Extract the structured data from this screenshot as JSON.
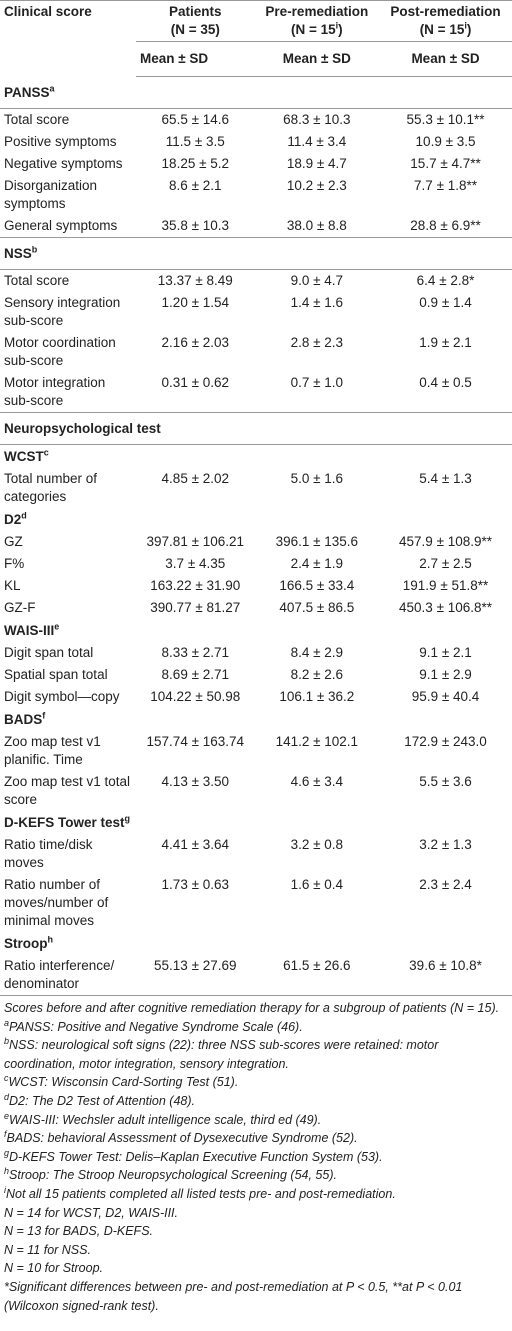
{
  "header": {
    "columns": [
      {
        "title": "Clinical score"
      },
      {
        "title": "Patients",
        "n": {
          "text": "(N = 35)"
        }
      },
      {
        "title": "Pre-remediation",
        "n": {
          "text": "(N = 15",
          "sup": "i",
          "close": ")"
        }
      },
      {
        "title": "Post-remediation",
        "n": {
          "text": "(N = 15",
          "sup": "i",
          "close": ")"
        }
      }
    ],
    "stat": [
      "Mean ± SD",
      "Mean ± SD",
      "Mean ± SD"
    ]
  },
  "sections": [
    {
      "title": "PANSS",
      "sup": "a",
      "rows": [
        {
          "label": "Total score",
          "values": [
            "65.5 ± 14.6",
            "68.3 ± 10.3",
            "55.3 ± 10.1**"
          ]
        },
        {
          "label": "Positive symptoms",
          "values": [
            "11.5 ± 3.5",
            "11.4 ± 3.4",
            "10.9 ± 3.5"
          ]
        },
        {
          "label": "Negative symptoms",
          "values": [
            "18.25 ± 5.2",
            "18.9 ± 4.7",
            "15.7 ± 4.7**"
          ]
        },
        {
          "label": "Disorganization symptoms",
          "values": [
            "8.6 ± 2.1",
            "10.2 ± 2.3",
            "7.7 ± 1.8**"
          ]
        },
        {
          "label": "General symptoms",
          "values": [
            "35.8 ± 10.3",
            "38.0 ± 8.8",
            "28.8 ± 6.9**"
          ]
        }
      ]
    },
    {
      "title": "NSS",
      "sup": "b",
      "rows": [
        {
          "label": "Total score",
          "values": [
            "13.37 ± 8.49",
            "9.0 ± 4.7",
            "6.4 ± 2.8*"
          ]
        },
        {
          "label": "Sensory integration sub-score",
          "values": [
            "1.20 ± 1.54",
            "1.4 ± 1.6",
            "0.9 ± 1.4"
          ]
        },
        {
          "label": "Motor coordination sub-score",
          "values": [
            "2.16 ± 2.03",
            "2.8 ± 2.3",
            "1.9 ± 2.1"
          ]
        },
        {
          "label": "Motor integration sub-score",
          "values": [
            "0.31 ± 0.62",
            "0.7 ± 1.0",
            "0.4 ± 0.5"
          ]
        }
      ]
    },
    {
      "title": "Neuropsychological test",
      "subsections": [
        {
          "title": "WCST",
          "sup": "c",
          "rows": [
            {
              "label": "Total number of categories",
              "values": [
                "4.85 ± 2.02",
                "5.0 ± 1.6",
                "5.4 ± 1.3"
              ]
            }
          ]
        },
        {
          "title": "D2",
          "sup": "d",
          "rows": [
            {
              "label": "GZ",
              "values": [
                "397.81 ± 106.21",
                "396.1 ± 135.6",
                "457.9 ± 108.9**"
              ]
            },
            {
              "label": "F%",
              "values": [
                "3.7 ± 4.35",
                "2.4 ± 1.9",
                "2.7 ± 2.5"
              ]
            },
            {
              "label": "KL",
              "values": [
                "163.22 ± 31.90",
                "166.5 ± 33.4",
                "191.9 ± 51.8**"
              ]
            },
            {
              "label": "GZ-F",
              "values": [
                "390.77 ± 81.27",
                "407.5 ± 86.5",
                "450.3 ± 106.8**"
              ]
            }
          ]
        },
        {
          "title": "WAIS-III",
          "sup": "e",
          "rows": [
            {
              "label": "Digit span total",
              "values": [
                "8.33 ± 2.71",
                "8.4 ± 2.9",
                "9.1 ± 2.1"
              ]
            },
            {
              "label": "Spatial span total",
              "values": [
                "8.69 ± 2.71",
                "8.2 ± 2.6",
                "9.1 ± 2.9"
              ]
            },
            {
              "label": "Digit symbol—copy",
              "values": [
                "104.22 ± 50.98",
                "106.1 ± 36.2",
                "95.9 ± 40.4"
              ]
            }
          ]
        },
        {
          "title": "BADS",
          "sup": "f",
          "rows": [
            {
              "label": "Zoo map test v1 planific. Time",
              "values": [
                "157.74 ± 163.74",
                "141.2 ± 102.1",
                "172.9 ± 243.0"
              ]
            },
            {
              "label": "Zoo map test v1 total score",
              "values": [
                "4.13 ± 3.50",
                "4.6 ± 3.4",
                "5.5 ± 3.6"
              ]
            }
          ]
        },
        {
          "title": "D-KEFS Tower test",
          "sup": "g",
          "rows": [
            {
              "label": "Ratio time/disk moves",
              "values": [
                "4.41 ± 3.64",
                "3.2 ± 0.8",
                "3.2 ± 1.3"
              ]
            },
            {
              "label": "Ratio number of moves/number of minimal moves",
              "values": [
                "1.73 ± 0.63",
                "1.6 ± 0.4",
                "2.3 ± 2.4"
              ]
            }
          ]
        },
        {
          "title": "Stroop",
          "sup": "h",
          "rows": [
            {
              "label": "Ratio interference/ denominator",
              "values": [
                "55.13 ± 27.69",
                "61.5 ± 26.6",
                "39.6 ± 10.8*"
              ]
            }
          ]
        }
      ]
    }
  ],
  "footnotes": [
    {
      "text": "Scores before and after cognitive remediation therapy for a subgroup of patients (N = 15)."
    },
    {
      "sup": "a",
      "text": "PANSS: Positive and Negative Syndrome Scale (46)."
    },
    {
      "sup": "b",
      "text": "NSS: neurological soft signs (22): three NSS sub-scores were retained: motor coordination, motor integration, sensory integration."
    },
    {
      "sup": "c",
      "text": "WCST: Wisconsin Card-Sorting Test (51)."
    },
    {
      "sup": "d",
      "text": "D2: The D2 Test of Attention (48)."
    },
    {
      "sup": "e",
      "text": "WAIS-III: Wechsler adult intelligence scale, third ed (49)."
    },
    {
      "sup": "f",
      "text": "BADS: behavioral Assessment of Dysexecutive Syndrome (52)."
    },
    {
      "sup": "g",
      "text": "D-KEFS Tower Test: Delis–Kaplan Executive Function System (53)."
    },
    {
      "sup": "h",
      "text": "Stroop: The Stroop Neuropsychological Screening (54, 55)."
    },
    {
      "sup": "i",
      "text": "Not all 15 patients completed all listed tests pre- and post-remediation."
    },
    {
      "text": "N = 14 for WCST, D2, WAIS-III."
    },
    {
      "text": "N = 13 for BADS, D-KEFS."
    },
    {
      "text": "N = 11 for NSS."
    },
    {
      "text": "N = 10 for Stroop."
    },
    {
      "text": "*Significant differences between pre- and post-remediation at P < 0.5, **at P < 0.01 (Wilcoxon signed-rank test)."
    }
  ]
}
